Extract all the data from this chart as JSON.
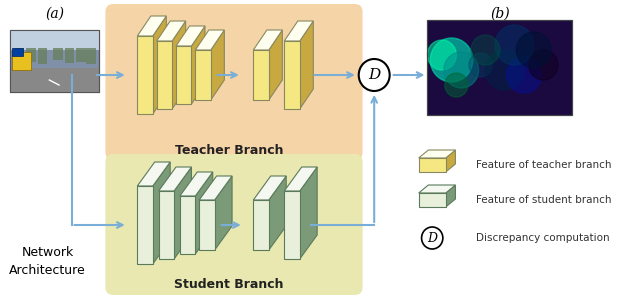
{
  "bg_color": "#ffffff",
  "arrow_color": "#7aaed6",
  "teacher_box_color": "#f5d5a8",
  "student_box_color": "#e8e8b0",
  "teacher_feat_face": "#f5e882",
  "teacher_feat_top": "#fffff0",
  "teacher_feat_side": "#c8a840",
  "student_feat_face": "#e8f0dc",
  "student_feat_top": "#f5f8f0",
  "student_feat_side": "#7a9a78",
  "student_feat_edge": "#5a7a5a",
  "label_a": "(a)",
  "label_b": "(b)",
  "teacher_label": "Teacher Branch",
  "student_label": "Student Branch",
  "network_label": "Network\nArchitecture",
  "legend_teacher": "Feature of teacher branch",
  "legend_student": "Feature of student branch",
  "legend_disc": "Discrepancy computation"
}
